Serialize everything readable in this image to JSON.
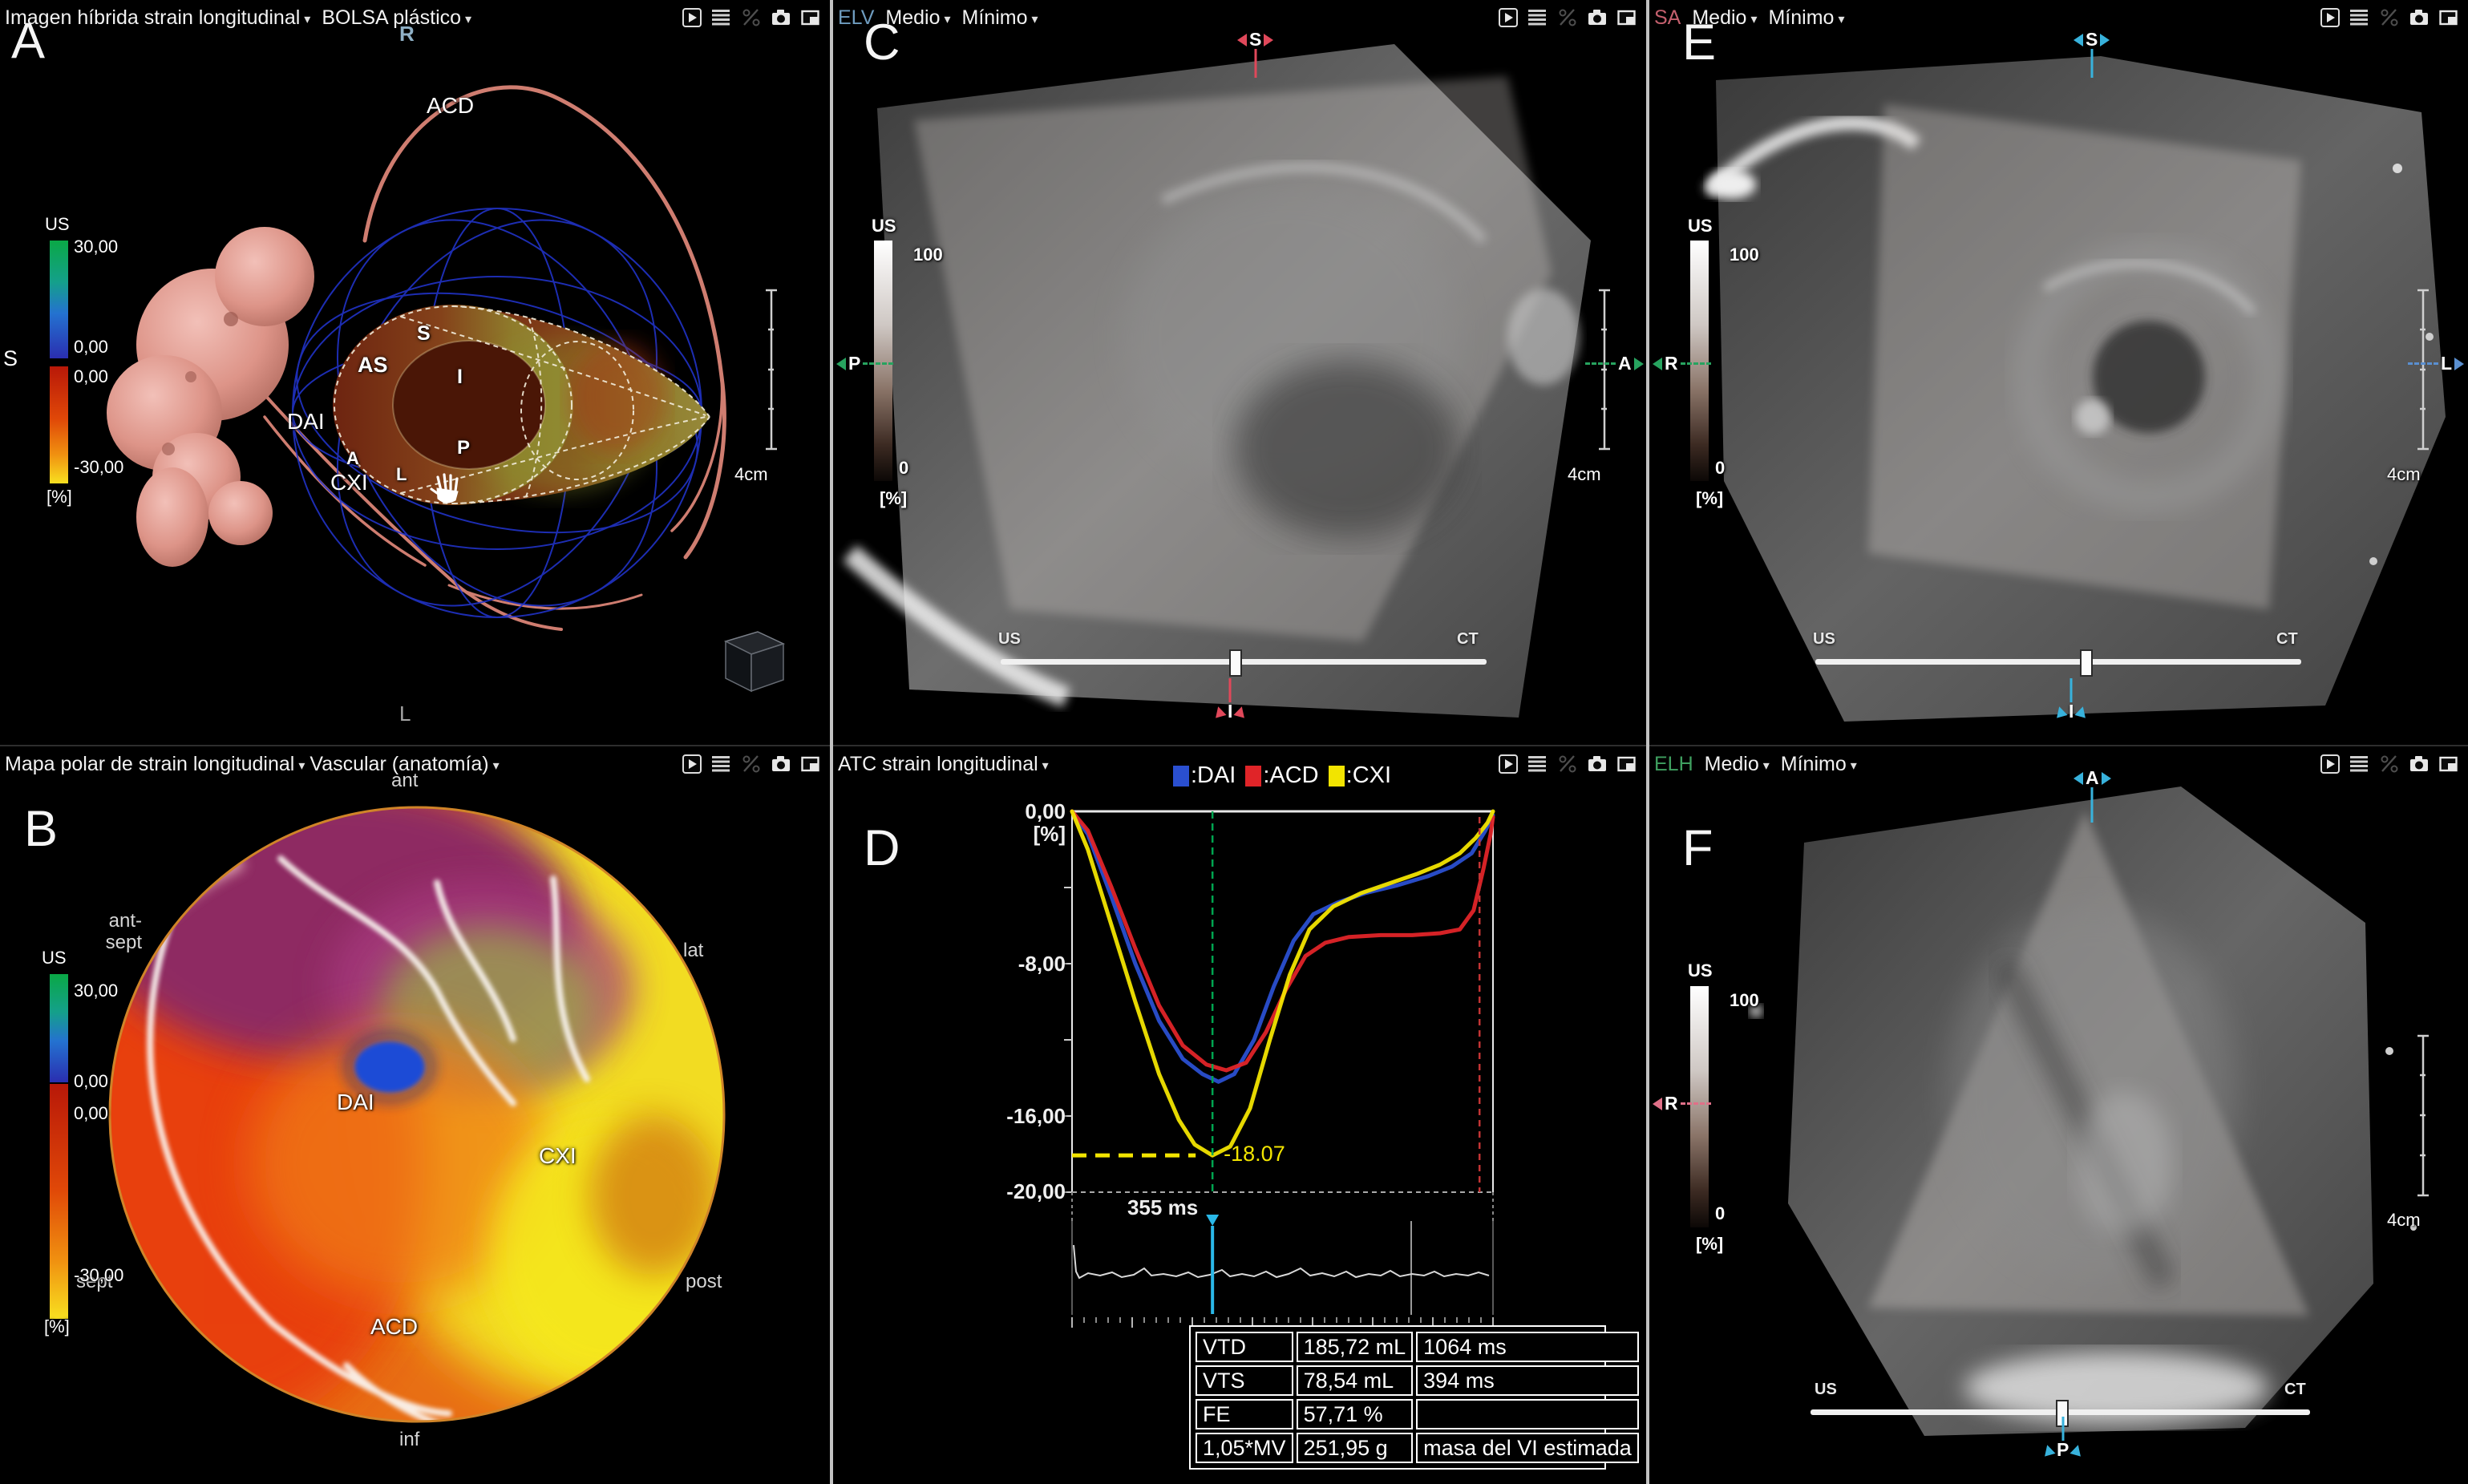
{
  "ui": {
    "caret": "▾",
    "slider": {
      "left_label": "US",
      "right_label": "CT"
    },
    "scale_label": "4cm",
    "gray_colorbar": {
      "title": "US",
      "max": "100",
      "min": "0",
      "unit": "[%]"
    },
    "strain_colorbar": {
      "title": "US",
      "max": "30,00",
      "zero_top": "0,00",
      "zero_bottom": "0,00",
      "min": "-30,00",
      "unit": "[%]"
    }
  },
  "colors": {
    "modality_elv": "#6f9dc0",
    "modality_sa": "#c4606e",
    "modality_elh": "#3fa060",
    "marker_red": "#e0485a",
    "marker_green": "#27a35f",
    "marker_cyan": "#38b2dc",
    "marker_blue": "#5a8fd0",
    "marker_pink": "#e07088",
    "panel_a_r": "#8fb0c6"
  },
  "panels": {
    "a": {
      "letter": "A",
      "menu1": "Imagen híbrida strain longitudinal",
      "menu2": "BOLSA plástico",
      "orientation_top": "R",
      "orientation_left": "S",
      "orientation_bottom": "L",
      "artery_acd": "ACD",
      "territory_dai": "DAI",
      "territory_cxi": "CXI",
      "seg_as": "AS",
      "seg_s": "S",
      "seg_i": "I",
      "seg_a": "A",
      "seg_l": "L",
      "seg_p": "P"
    },
    "b": {
      "letter": "B",
      "menu1": "Mapa polar de strain longitudinal",
      "menu2": "Vascular (anatomía)",
      "region_ant": "ant",
      "region_antsept": "ant-\nsept",
      "region_lat": "lat",
      "region_sept": "sept",
      "region_post": "post",
      "region_inf": "inf",
      "territory_dai": "DAI",
      "territory_cxi": "CXI",
      "territory_acd": "ACD"
    },
    "c": {
      "letter": "C",
      "modality": "ELV",
      "menu1": "Medio",
      "menu2": "Mínimo",
      "marker_top": "S",
      "marker_left": "P",
      "marker_right": "A",
      "marker_bottom": "I"
    },
    "d": {
      "letter": "D",
      "menu1": "ATC strain longitudinal",
      "table": {
        "rows": [
          [
            "VTD",
            "185,72 mL",
            "1064 ms"
          ],
          [
            "VTS",
            "78,54 mL",
            "394 ms"
          ],
          [
            "FE",
            "57,71 %",
            ""
          ],
          [
            "1,05*MV",
            "251,95 g",
            "masa del VI estimada"
          ]
        ]
      }
    },
    "e": {
      "letter": "E",
      "modality": "SA",
      "menu1": "Medio",
      "menu2": "Mínimo",
      "marker_top": "S",
      "marker_left": "R",
      "marker_right": "L",
      "marker_bottom": "I"
    },
    "f": {
      "letter": "F",
      "modality": "ELH",
      "menu1": "Medio",
      "menu2": "Mínimo",
      "marker_top": "A",
      "marker_left": "R",
      "marker_bottom": "P"
    }
  },
  "chart_data": {
    "type": "line",
    "title": "ATC strain longitudinal",
    "x_unit": "ms",
    "y_unit": "[%]",
    "xlim": [
      0,
      1064
    ],
    "ylim": [
      0,
      -20
    ],
    "ytick_labels": [
      "0,00",
      "-8,00",
      "-16,00",
      "-20,00"
    ],
    "ytick_values": [
      0,
      -8,
      -16,
      -20
    ],
    "legend_position": "top",
    "series": [
      {
        "name": "DAI",
        "color": "#2a4fd0",
        "points": [
          [
            0,
            0
          ],
          [
            40,
            -1.2
          ],
          [
            100,
            -4.5
          ],
          [
            160,
            -8
          ],
          [
            220,
            -11
          ],
          [
            280,
            -13
          ],
          [
            330,
            -13.8
          ],
          [
            370,
            -14.2
          ],
          [
            410,
            -13.8
          ],
          [
            460,
            -12
          ],
          [
            510,
            -9.2
          ],
          [
            560,
            -6.8
          ],
          [
            610,
            -5.4
          ],
          [
            670,
            -4.8
          ],
          [
            740,
            -4.3
          ],
          [
            820,
            -3.9
          ],
          [
            900,
            -3.4
          ],
          [
            960,
            -2.9
          ],
          [
            1010,
            -2.2
          ],
          [
            1045,
            -1
          ],
          [
            1064,
            -0.2
          ]
        ]
      },
      {
        "name": "ACD",
        "color": "#e02428",
        "points": [
          [
            0,
            0
          ],
          [
            40,
            -1
          ],
          [
            100,
            -4
          ],
          [
            160,
            -7.2
          ],
          [
            220,
            -10.2
          ],
          [
            280,
            -12.3
          ],
          [
            340,
            -13.3
          ],
          [
            390,
            -13.6
          ],
          [
            440,
            -13.2
          ],
          [
            490,
            -11.6
          ],
          [
            540,
            -9.4
          ],
          [
            590,
            -7.6
          ],
          [
            640,
            -6.9
          ],
          [
            700,
            -6.6
          ],
          [
            780,
            -6.5
          ],
          [
            860,
            -6.5
          ],
          [
            930,
            -6.4
          ],
          [
            980,
            -6.2
          ],
          [
            1015,
            -5.2
          ],
          [
            1040,
            -3
          ],
          [
            1058,
            -1.2
          ],
          [
            1064,
            -0.3
          ]
        ]
      },
      {
        "name": "CXI",
        "color": "#f2e400",
        "points": [
          [
            0,
            0
          ],
          [
            40,
            -2
          ],
          [
            100,
            -6
          ],
          [
            160,
            -10
          ],
          [
            220,
            -13.8
          ],
          [
            270,
            -16.2
          ],
          [
            310,
            -17.5
          ],
          [
            355,
            -18.07
          ],
          [
            400,
            -17.6
          ],
          [
            450,
            -15.6
          ],
          [
            500,
            -12
          ],
          [
            550,
            -8.6
          ],
          [
            600,
            -6.2
          ],
          [
            660,
            -5
          ],
          [
            730,
            -4.3
          ],
          [
            800,
            -3.8
          ],
          [
            870,
            -3.3
          ],
          [
            930,
            -2.8
          ],
          [
            980,
            -2.2
          ],
          [
            1020,
            -1.4
          ],
          [
            1050,
            -0.6
          ],
          [
            1064,
            0
          ]
        ]
      }
    ],
    "annotations": {
      "min_value": "-18.07",
      "min_strain": -18.07,
      "min_time": "355 ms",
      "cursor_time_ms": 355,
      "end_cursor_time_ms": 1030
    }
  }
}
